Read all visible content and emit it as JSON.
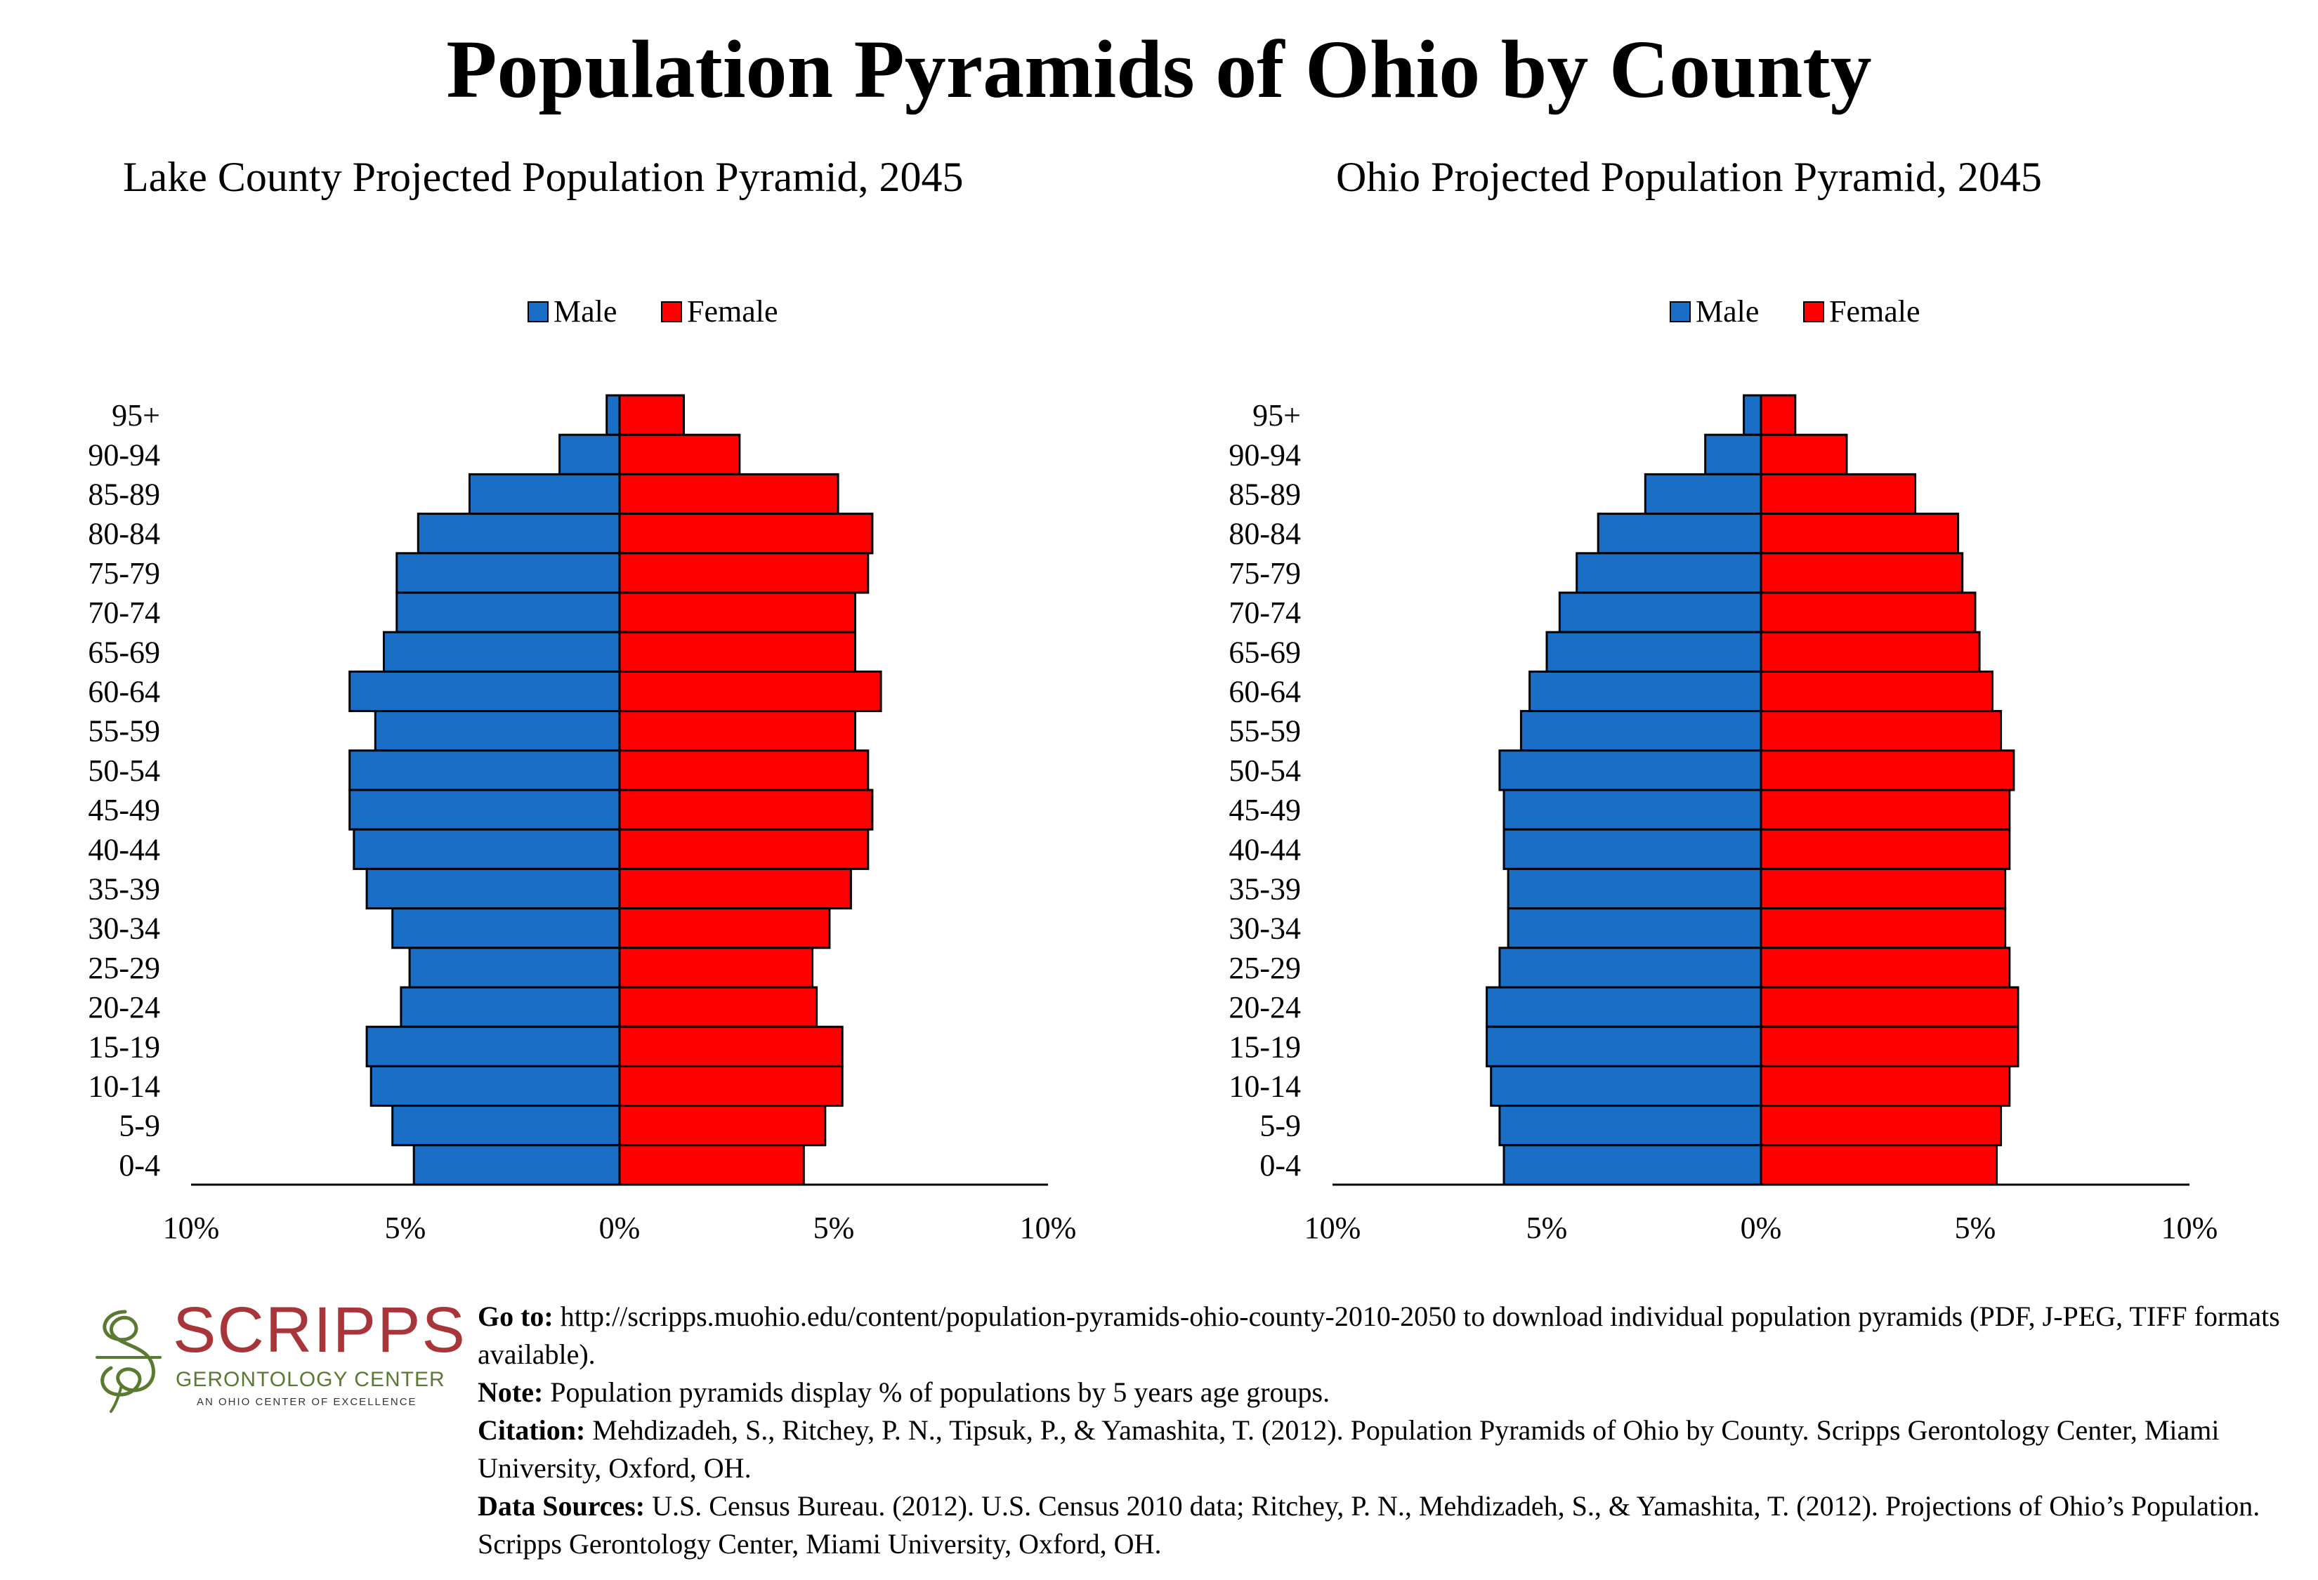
{
  "title": "Population Pyramids of Ohio by County",
  "colors": {
    "male": "#1a6ec5",
    "female": "#fe0000",
    "logo_red": "#a8353a",
    "logo_green": "#5a7a32"
  },
  "age_groups": [
    "95+",
    "90-94",
    "85-89",
    "80-84",
    "75-79",
    "70-74",
    "65-69",
    "60-64",
    "55-59",
    "50-54",
    "45-49",
    "40-44",
    "35-39",
    "30-34",
    "25-29",
    "20-24",
    "15-19",
    "10-14",
    "5-9",
    "0-4"
  ],
  "x_tick_labels": [
    "10%",
    "5%",
    "0%",
    "5%",
    "10%"
  ],
  "chart_data": [
    {
      "type": "bar",
      "orientation": "horizontal-pyramid",
      "title": "Lake County Projected Population Pyramid, 2045",
      "categories": [
        "95+",
        "90-94",
        "85-89",
        "80-84",
        "75-79",
        "70-74",
        "65-69",
        "60-64",
        "55-59",
        "50-54",
        "45-49",
        "40-44",
        "35-39",
        "30-34",
        "25-29",
        "20-24",
        "15-19",
        "10-14",
        "5-9",
        "0-4"
      ],
      "series": [
        {
          "name": "Male",
          "values": [
            0.3,
            1.4,
            3.5,
            4.7,
            5.2,
            5.2,
            5.5,
            6.3,
            5.7,
            6.3,
            6.3,
            6.2,
            5.9,
            5.3,
            4.9,
            5.1,
            5.9,
            5.8,
            5.3,
            4.8
          ]
        },
        {
          "name": "Female",
          "values": [
            1.5,
            2.8,
            5.1,
            5.9,
            5.8,
            5.5,
            5.5,
            6.1,
            5.5,
            5.8,
            5.9,
            5.8,
            5.4,
            4.9,
            4.5,
            4.6,
            5.2,
            5.2,
            4.8,
            4.3
          ]
        }
      ],
      "xlim": [
        -10,
        10
      ],
      "legend": "top-center",
      "grid": false
    },
    {
      "type": "bar",
      "orientation": "horizontal-pyramid",
      "title": "Ohio Projected Population Pyramid, 2045",
      "categories": [
        "95+",
        "90-94",
        "85-89",
        "80-84",
        "75-79",
        "70-74",
        "65-69",
        "60-64",
        "55-59",
        "50-54",
        "45-49",
        "40-44",
        "35-39",
        "30-34",
        "25-29",
        "20-24",
        "15-19",
        "10-14",
        "5-9",
        "0-4"
      ],
      "series": [
        {
          "name": "Male",
          "values": [
            0.4,
            1.3,
            2.7,
            3.8,
            4.3,
            4.7,
            5.0,
            5.4,
            5.6,
            6.1,
            6.0,
            6.0,
            5.9,
            5.9,
            6.1,
            6.4,
            6.4,
            6.3,
            6.1,
            6.0
          ]
        },
        {
          "name": "Female",
          "values": [
            0.8,
            2.0,
            3.6,
            4.6,
            4.7,
            5.0,
            5.1,
            5.4,
            5.6,
            5.9,
            5.8,
            5.8,
            5.7,
            5.7,
            5.8,
            6.0,
            6.0,
            5.8,
            5.6,
            5.5
          ]
        }
      ],
      "xlim": [
        -10,
        10
      ],
      "legend": "top-center",
      "grid": false
    }
  ],
  "logo": {
    "name": "SCRIPPS",
    "subtitle": "GERONTOLOGY CENTER",
    "tagline": "AN OHIO CENTER OF EXCELLENCE"
  },
  "notes": [
    {
      "label": "Go to:",
      "text": " http://scripps.muohio.edu/content/population-pyramids-ohio-county-2010-2050 to download individual population pyramids (PDF, J-PEG, TIFF formats available)."
    },
    {
      "label": "Note:",
      "text": " Population pyramids display % of populations by 5 years age groups."
    },
    {
      "label": "Citation:",
      "text": " Mehdizadeh, S., Ritchey, P. N., Tipsuk, P., & Yamashita, T. (2012). Population Pyramids of Ohio by County. Scripps Gerontology Center, Miami University, Oxford, OH."
    },
    {
      "label": "Data Sources:",
      "text": " U.S. Census Bureau. (2012). U.S. Census 2010 data; Ritchey, P. N., Mehdizadeh, S., & Yamashita, T. (2012). Projections of Ohio’s Population. Scripps Gerontology Center, Miami University, Oxford, OH."
    }
  ]
}
